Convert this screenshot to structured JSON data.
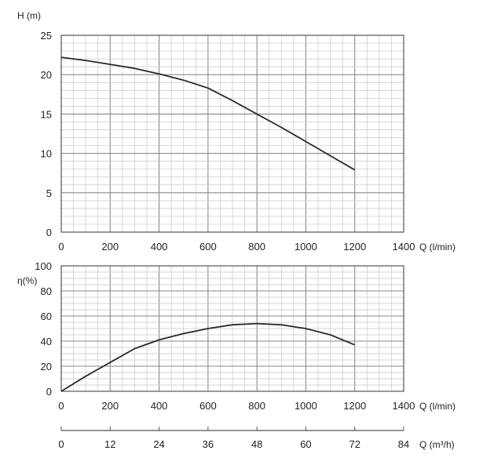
{
  "chart_data": [
    {
      "type": "line",
      "ylabel": "H (m)",
      "xlabel": "Q (l/min)",
      "xlim": [
        0,
        1400
      ],
      "ylim": [
        0,
        25
      ],
      "x_ticks": [
        "0",
        "200",
        "400",
        "600",
        "800",
        "1000",
        "1200",
        "1400"
      ],
      "y_ticks": [
        "0",
        "5",
        "10",
        "15",
        "20",
        "25"
      ],
      "grid": true,
      "series": [
        {
          "x": [
            0,
            100,
            200,
            300,
            400,
            500,
            600,
            700,
            800,
            900,
            1000,
            1100,
            1200
          ],
          "y": [
            22.2,
            21.8,
            21.3,
            20.8,
            20.1,
            19.3,
            18.3,
            16.7,
            15.0,
            13.3,
            11.5,
            9.7,
            7.9
          ]
        }
      ]
    },
    {
      "type": "line",
      "ylabel": "η(%)",
      "xlabel": "Q (l/min)",
      "xlim": [
        0,
        1400
      ],
      "ylim": [
        0,
        100
      ],
      "x_ticks": [
        "0",
        "200",
        "400",
        "600",
        "800",
        "1000",
        "1200",
        "1400"
      ],
      "y_ticks": [
        "0",
        "20",
        "40",
        "60",
        "80",
        "100"
      ],
      "grid": true,
      "series": [
        {
          "x": [
            0,
            100,
            200,
            300,
            400,
            500,
            600,
            700,
            800,
            900,
            1000,
            1100,
            1200
          ],
          "y": [
            0,
            12,
            23,
            34,
            41,
            46,
            50,
            53,
            54,
            53,
            50,
            45,
            37
          ]
        }
      ],
      "secondary_x_axis": {
        "label": "Q (m³/h)",
        "xlim": [
          0,
          84
        ],
        "ticks": [
          "0",
          "12",
          "24",
          "36",
          "48",
          "60",
          "72",
          "84"
        ]
      }
    }
  ]
}
